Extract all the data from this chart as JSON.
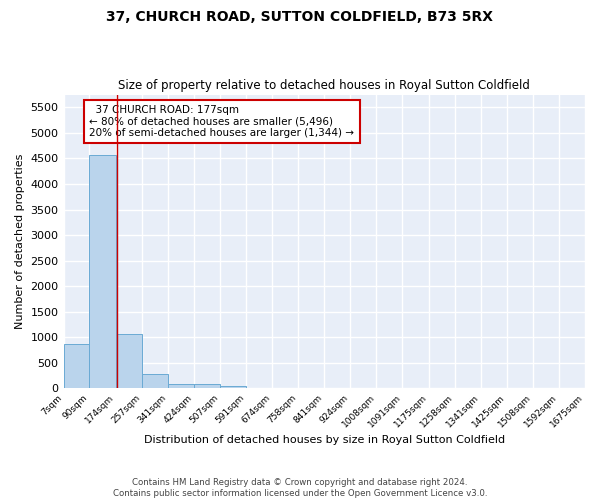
{
  "title": "37, CHURCH ROAD, SUTTON COLDFIELD, B73 5RX",
  "subtitle": "Size of property relative to detached houses in Royal Sutton Coldfield",
  "xlabel": "Distribution of detached houses by size in Royal Sutton Coldfield",
  "ylabel": "Number of detached properties",
  "bar_color": "#bad4ec",
  "bar_edge_color": "#6aaad4",
  "background_color": "#e8eef8",
  "grid_color": "white",
  "annotation_line_color": "#cc0000",
  "annotation_box_color": "#cc0000",
  "bins": [
    7,
    90,
    174,
    257,
    341,
    424,
    507,
    591,
    674,
    758,
    841,
    924,
    1008,
    1091,
    1175,
    1258,
    1341,
    1425,
    1508,
    1592,
    1675
  ],
  "bin_labels": [
    "7sqm",
    "90sqm",
    "174sqm",
    "257sqm",
    "341sqm",
    "424sqm",
    "507sqm",
    "591sqm",
    "674sqm",
    "758sqm",
    "841sqm",
    "924sqm",
    "1008sqm",
    "1091sqm",
    "1175sqm",
    "1258sqm",
    "1341sqm",
    "1425sqm",
    "1508sqm",
    "1592sqm",
    "1675sqm"
  ],
  "values": [
    870,
    4560,
    1060,
    290,
    80,
    80,
    50,
    0,
    0,
    0,
    0,
    0,
    0,
    0,
    0,
    0,
    0,
    0,
    0,
    0
  ],
  "property_line_x": 177,
  "annotation_text": "  37 CHURCH ROAD: 177sqm\n← 80% of detached houses are smaller (5,496)\n20% of semi-detached houses are larger (1,344) →",
  "ylim": [
    0,
    5750
  ],
  "yticks": [
    0,
    500,
    1000,
    1500,
    2000,
    2500,
    3000,
    3500,
    4000,
    4500,
    5000,
    5500
  ],
  "footnote1": "Contains HM Land Registry data © Crown copyright and database right 2024.",
  "footnote2": "Contains public sector information licensed under the Open Government Licence v3.0."
}
